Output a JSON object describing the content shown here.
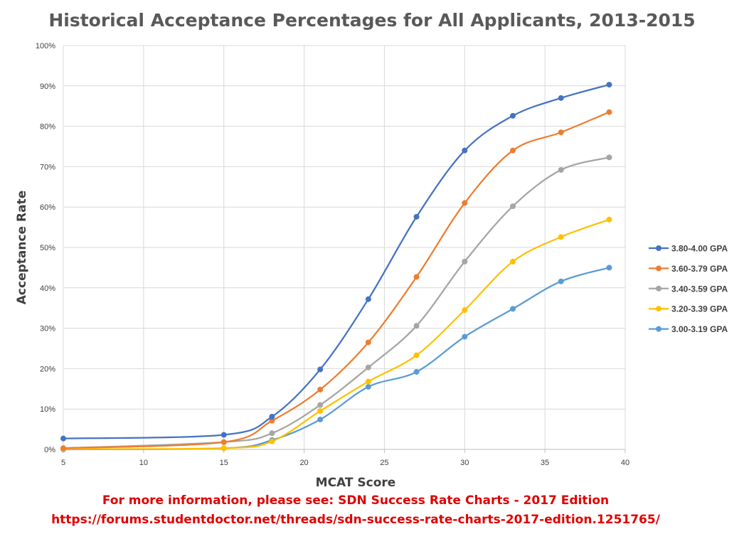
{
  "chart_data": {
    "type": "line",
    "title": "Historical Acceptance Percentages for All Applicants, 2013-2015",
    "xlabel": "MCAT Score",
    "ylabel": "Acceptance Rate",
    "xlim": [
      5,
      40
    ],
    "ylim": [
      0,
      100
    ],
    "x_ticks": [
      5,
      10,
      15,
      20,
      25,
      30,
      35,
      40
    ],
    "x_tick_labels": [
      "5",
      "10",
      "15",
      "20",
      "25",
      "30",
      "35",
      "40"
    ],
    "y_ticks": [
      0,
      10,
      20,
      30,
      40,
      50,
      60,
      70,
      80,
      90,
      100
    ],
    "y_tick_labels": [
      "0%",
      "10%",
      "20%",
      "30%",
      "40%",
      "50%",
      "60%",
      "70%",
      "80%",
      "90%",
      "100%"
    ],
    "grid": true,
    "smooth": true,
    "legend_position": "right",
    "x": [
      5,
      15,
      18,
      21,
      24,
      27,
      30,
      33,
      36,
      39
    ],
    "series": [
      {
        "name": "3.80-4.00 GPA",
        "color": "#4472c4",
        "values": [
          2.7,
          3.6,
          8.1,
          19.8,
          37.2,
          57.6,
          74.0,
          82.6,
          87.0,
          90.3
        ]
      },
      {
        "name": "3.60-3.79 GPA",
        "color": "#ed7d31",
        "values": [
          0.3,
          1.8,
          7.1,
          14.8,
          26.5,
          42.7,
          61.0,
          74.0,
          78.5,
          83.5
        ]
      },
      {
        "name": "3.40-3.59 GPA",
        "color": "#a5a5a5",
        "values": [
          0.3,
          1.8,
          4.0,
          11.0,
          20.3,
          30.6,
          46.5,
          60.2,
          69.2,
          72.3
        ]
      },
      {
        "name": "3.20-3.39 GPA",
        "color": "#ffc000",
        "values": [
          0.1,
          0.3,
          2.0,
          9.5,
          16.8,
          23.3,
          34.5,
          46.5,
          52.6,
          56.9
        ]
      },
      {
        "name": "3.00-3.19 GPA",
        "color": "#5b9bd5",
        "values": [
          0.0,
          0.3,
          2.3,
          7.4,
          15.5,
          19.2,
          27.9,
          34.8,
          41.6,
          45.0
        ]
      }
    ]
  },
  "footer": {
    "line1": "For more information, please see: SDN Success Rate Charts - 2017 Edition",
    "line2": "https://forums.studentdoctor.net/threads/sdn-success-rate-charts-2017-edition.1251765/",
    "color": "#e00000"
  }
}
